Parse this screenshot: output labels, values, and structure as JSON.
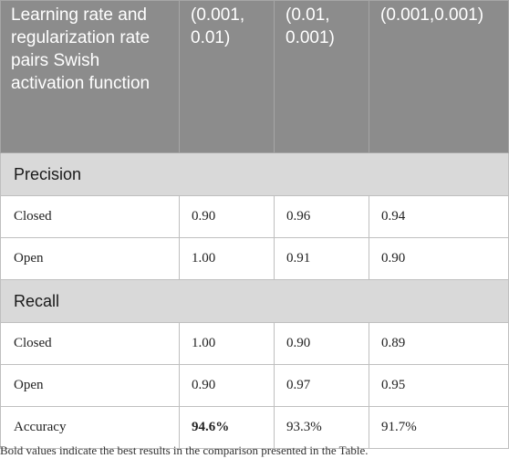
{
  "table": {
    "headers": [
      "Learning rate and regularization rate pairs Swish activation function",
      "(0.001, 0.01)",
      "(0.01, 0.001)",
      "(0.001,0.001)"
    ],
    "sections": [
      {
        "title": "Precision",
        "rows": [
          {
            "label": "Closed",
            "values": [
              "0.90",
              "0.96",
              "0.94"
            ]
          },
          {
            "label": "Open",
            "values": [
              "1.00",
              "0.91",
              "0.90"
            ]
          }
        ]
      },
      {
        "title": "Recall",
        "rows": [
          {
            "label": "Closed",
            "values": [
              "1.00",
              "0.90",
              "0.89"
            ]
          },
          {
            "label": "Open",
            "values": [
              "0.90",
              "0.97",
              "0.95"
            ]
          }
        ]
      }
    ],
    "accuracy": {
      "label": "Accuracy",
      "values": [
        "94.6%",
        "93.3%",
        "91.7%"
      ]
    }
  },
  "footnote": "Bold values indicate the best results in the comparison presented in the Table."
}
